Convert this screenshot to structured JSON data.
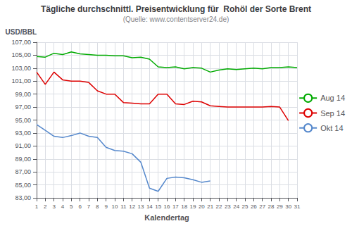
{
  "chart_data": {
    "type": "line",
    "title": "Tägliche durchschnittl. Preisentwicklung für  Rohöl der Sorte Brent",
    "subtitle": "(Quelle: www.contentserver24.de)",
    "x_label": "Kalendertag",
    "y_label": "USD/BBL",
    "xlim": [
      1,
      31
    ],
    "xticks": [
      1,
      2,
      3,
      4,
      5,
      6,
      7,
      8,
      9,
      10,
      11,
      12,
      13,
      14,
      15,
      16,
      17,
      18,
      19,
      20,
      21,
      22,
      23,
      24,
      25,
      26,
      27,
      28,
      29,
      30,
      31
    ],
    "ylim": [
      83.0,
      107.0
    ],
    "yticks": [
      {
        "value": 83.0,
        "label": "83,00"
      },
      {
        "value": 85.0,
        "label": "85,00"
      },
      {
        "value": 87.0,
        "label": "87,00"
      },
      {
        "value": 89.0,
        "label": "89,00"
      },
      {
        "value": 91.0,
        "label": "91,00"
      },
      {
        "value": 93.0,
        "label": "93,00"
      },
      {
        "value": 95.0,
        "label": "95,00"
      },
      {
        "value": 97.0,
        "label": "97,00"
      },
      {
        "value": 99.0,
        "label": "99,00"
      },
      {
        "value": 101.0,
        "label": "101,00"
      },
      {
        "value": 103.0,
        "label": "103,00"
      },
      {
        "value": 105.0,
        "label": "105,00"
      },
      {
        "value": 107.0,
        "label": "107,00"
      }
    ],
    "grid": true,
    "legend": "right",
    "series": [
      {
        "name": "Aug 14",
        "color": "#00AA00",
        "x": [
          1,
          2,
          3,
          4,
          5,
          6,
          7,
          8,
          9,
          10,
          11,
          12,
          13,
          14,
          15,
          16,
          17,
          18,
          19,
          20,
          21,
          22,
          23,
          24,
          25,
          26,
          27,
          28,
          29,
          30,
          31
        ],
        "values": [
          104.8,
          104.7,
          105.3,
          105.1,
          105.5,
          105.2,
          105.1,
          105.0,
          105.0,
          104.9,
          104.9,
          104.6,
          104.7,
          104.4,
          103.2,
          103.1,
          103.2,
          102.9,
          103.1,
          103.0,
          102.4,
          102.7,
          102.9,
          102.8,
          102.9,
          103.0,
          102.9,
          103.1,
          103.1,
          103.2,
          103.1
        ]
      },
      {
        "name": "Sep 14",
        "color": "#DD0000",
        "x": [
          1,
          2,
          3,
          4,
          5,
          6,
          7,
          8,
          9,
          10,
          11,
          12,
          13,
          14,
          15,
          16,
          17,
          18,
          19,
          20,
          21,
          22,
          23,
          24,
          25,
          26,
          27,
          28,
          29,
          30
        ],
        "values": [
          102.4,
          100.5,
          102.4,
          101.2,
          101.0,
          101.0,
          100.8,
          99.5,
          99.0,
          99.0,
          97.7,
          97.6,
          97.5,
          97.5,
          99.0,
          99.0,
          97.5,
          97.4,
          97.9,
          97.8,
          97.2,
          97.1,
          97.0,
          97.0,
          97.0,
          97.0,
          97.0,
          97.1,
          97.0,
          94.9
        ]
      },
      {
        "name": "Okt 14",
        "color": "#5588CC",
        "x": [
          1,
          2,
          3,
          4,
          5,
          6,
          7,
          8,
          9,
          10,
          11,
          12,
          13,
          14,
          15,
          16,
          17,
          18,
          19,
          20,
          21
        ],
        "values": [
          94.3,
          93.4,
          92.5,
          92.3,
          92.6,
          93.0,
          92.5,
          92.3,
          90.8,
          90.3,
          90.2,
          89.8,
          88.5,
          84.5,
          84.0,
          86.0,
          86.2,
          86.1,
          85.8,
          85.4,
          85.6
        ]
      }
    ]
  }
}
